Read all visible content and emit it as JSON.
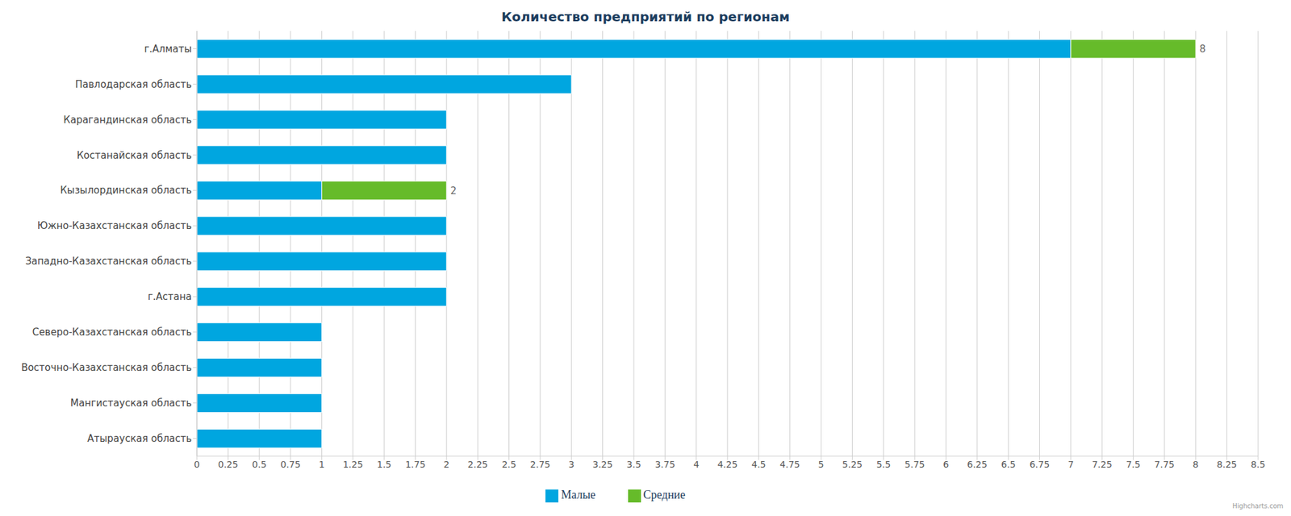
{
  "chart_data": {
    "type": "bar",
    "title": "Количество предприятий по регионам",
    "orientation": "horizontal",
    "stacked": true,
    "categories": [
      "г.Алматы",
      "Павлодарская область",
      "Карагандинская область",
      "Костанайская область",
      "Кызылординская область",
      "Южно-Казахстанская область",
      "Западно-Казахстанская область",
      "г.Астана",
      "Северо-Казахстанская область",
      "Восточно-Казахстанская область",
      "Мангистауская область",
      "Атырауская область"
    ],
    "series": [
      {
        "name": "Малые",
        "color": "#00a6e0",
        "values": [
          7,
          3,
          2,
          2,
          1,
          2,
          2,
          2,
          1,
          1,
          1,
          1
        ]
      },
      {
        "name": "Средние",
        "color": "#66bb2a",
        "values": [
          1,
          0,
          0,
          0,
          1,
          0,
          0,
          0,
          0,
          0,
          0,
          0
        ]
      }
    ],
    "totals": [
      8,
      3,
      2,
      2,
      2,
      2,
      2,
      2,
      1,
      1,
      1,
      1
    ],
    "xlim": [
      0,
      8.5
    ],
    "xticks": [
      0,
      0.25,
      0.5,
      0.75,
      1,
      1.25,
      1.5,
      1.75,
      2,
      2.25,
      2.5,
      2.75,
      3,
      3.25,
      3.5,
      3.75,
      4,
      4.25,
      4.5,
      4.75,
      5,
      5.25,
      5.5,
      5.75,
      6,
      6.25,
      6.5,
      6.75,
      7,
      7.25,
      7.5,
      7.75,
      8,
      8.25,
      8.5
    ],
    "grid": true,
    "legend": "bottom",
    "credits": "Highcharts.com"
  }
}
